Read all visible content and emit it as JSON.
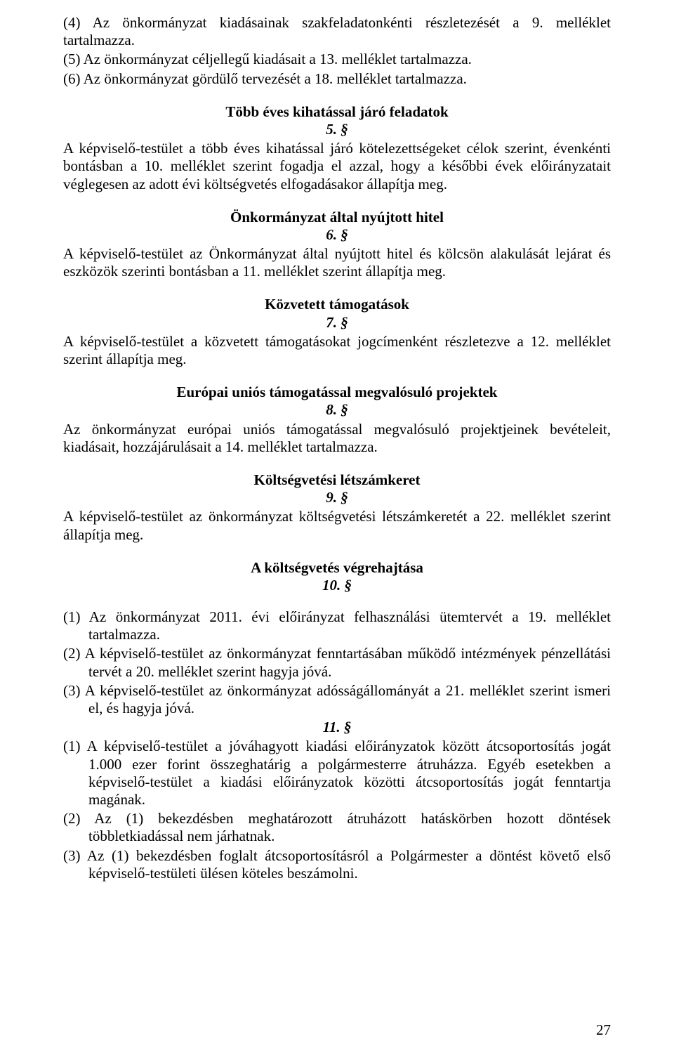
{
  "p4": "(4) Az önkormányzat kiadásainak szakfeladatonkénti részletezését a 9. melléklet tartalmazza.",
  "p5": "(5) Az önkormányzat céljellegű kiadásait a 13. melléklet tartalmazza.",
  "p6": "(6) Az önkormányzat gördülő tervezését a 18. melléklet tartalmazza.",
  "h5": "Több éves kihatással járó feladatok",
  "s5": "5. §",
  "body5": "A képviselő-testület a több éves kihatással járó kötelezettségeket célok szerint, évenkénti bontásban a 10. melléklet szerint fogadja el azzal, hogy a későbbi évek előirányzatait véglegesen az adott évi költségvetés elfogadásakor állapítja meg.",
  "h6": "Önkormányzat által nyújtott hitel",
  "s6": "6. §",
  "body6": "A képviselő-testület az Önkormányzat által nyújtott hitel és kölcsön alakulását lejárat és eszközök szerinti bontásban a 11. melléklet szerint állapítja meg.",
  "h7": "Közvetett támogatások",
  "s7": "7. §",
  "body7": "A képviselő-testület a közvetett támogatásokat jogcímenként részletezve a 12. melléklet szerint állapítja meg.",
  "h8": "Európai uniós támogatással megvalósuló projektek",
  "s8": "8. §",
  "body8": "Az önkormányzat európai uniós támogatással megvalósuló projektjeinek bevételeit, kiadásait, hozzájárulásait a 14. melléklet tartalmazza.",
  "h9": "Költségvetési létszámkeret",
  "s9": "9. §",
  "body9": "A képviselő-testület az önkormányzat költségvetési létszámkeretét a 22. melléklet szerint állapítja meg.",
  "h10": "A költségvetés végrehajtása",
  "s10": "10. §",
  "p10_1": "(1) Az önkormányzat 2011. évi előirányzat felhasználási ütemtervét a 19. melléklet tartalmazza.",
  "p10_2": "(2) A képviselő-testület az önkormányzat fenntartásában működő intézmények pénzellátási tervét a 20. melléklet szerint hagyja jóvá.",
  "p10_3": "(3) A képviselő-testület az önkormányzat adósságállományát a 21. melléklet szerint ismeri el, és hagyja jóvá.",
  "s11": "11. §",
  "p11_1": "(1) A képviselő-testület a jóváhagyott kiadási előirányzatok között átcsoportosítás jogát 1.000 ezer forint összeghatárig a polgármesterre átruházza. Egyéb esetekben a képviselő-testület a kiadási előirányzatok közötti átcsoportosítás jogát fenntartja magának.",
  "p11_2": "(2) Az (1) bekezdésben meghatározott átruházott hatáskörben hozott döntések többletkiadással nem járhatnak.",
  "p11_3": "(3) Az (1) bekezdésben foglalt átcsoportosításról a Polgármester a döntést követő első képviselő-testületi ülésen köteles beszámolni.",
  "page_number": "27"
}
